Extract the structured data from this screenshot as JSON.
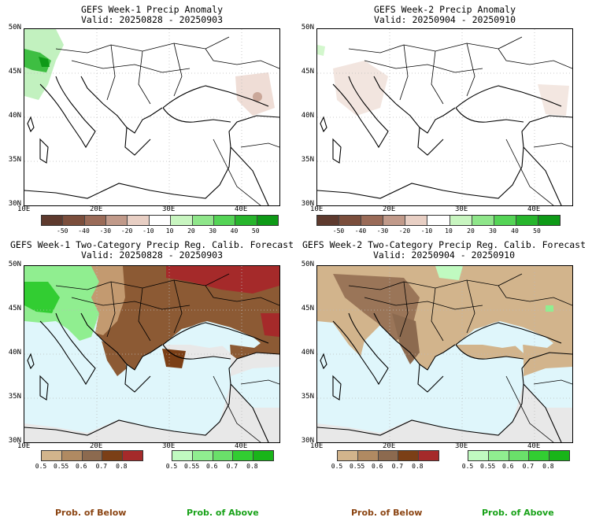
{
  "panels": {
    "tl": {
      "title_line1": "GEFS Week-1 Precip Anomaly",
      "title_line2": "Valid: 20250828 - 20250903"
    },
    "tr": {
      "title_line1": "GEFS Week-2 Precip Anomaly",
      "title_line2": "Valid: 20250904 - 20250910"
    },
    "bl": {
      "title_line1": "GEFS Week-1 Two-Category Precip Reg. Calib. Forecast",
      "title_line2": "Valid: 20250828 - 20250903"
    },
    "br": {
      "title_line1": "GEFS Week-2 Two-Category Precip Reg. Calib. Forecast",
      "title_line2": "Valid: 20250904 - 20250910"
    }
  },
  "axes": {
    "lat_labels": [
      "50N",
      "45N",
      "40N",
      "35N",
      "30N"
    ],
    "lon_labels": [
      "10E",
      "20E",
      "30E",
      "40E"
    ]
  },
  "anomaly_colorbar": {
    "labels": [
      "-50",
      "-40",
      "-30",
      "-20",
      "-10",
      "10",
      "20",
      "30",
      "40",
      "50"
    ],
    "colors": [
      "#5e3a2e",
      "#7b4e3c",
      "#9a6b58",
      "#c19a8a",
      "#e8cfc4",
      "#ffffff",
      "#c8f5c0",
      "#8fe68a",
      "#55d456",
      "#27b52c",
      "#0e9a17"
    ]
  },
  "prob_below_colorbar": {
    "labels": [
      "0.5",
      "0.55",
      "0.6",
      "0.7",
      "0.8"
    ],
    "colors": [
      "#d2b48c",
      "#b08a62",
      "#8c6a4f",
      "#7b3f16",
      "#a52a2a"
    ]
  },
  "prob_above_colorbar": {
    "labels": [
      "0.5",
      "0.55",
      "0.6",
      "0.7",
      "0.8"
    ],
    "colors": [
      "#c0fac0",
      "#90ee90",
      "#6ae06a",
      "#32cd32",
      "#19b419"
    ]
  },
  "legend": {
    "below_label": "Prob. of Below",
    "above_label": "Prob. of Above",
    "below_color": "#8b4513",
    "above_color": "#19a219"
  },
  "map_colors": {
    "sea": "#dff6fb",
    "no_signal": "#e8e8e8",
    "land_white": "#ffffff"
  }
}
